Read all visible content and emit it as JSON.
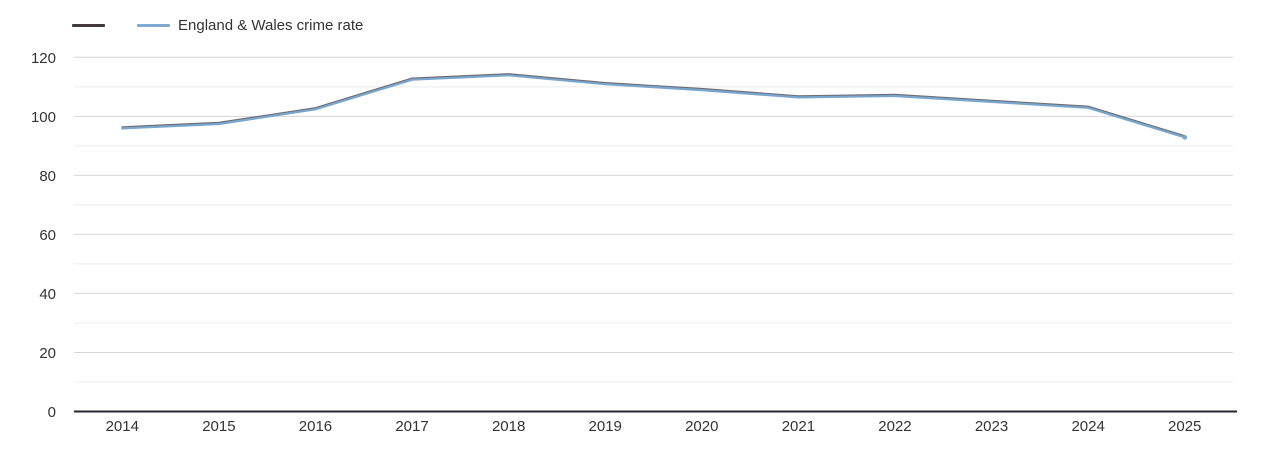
{
  "legend": {
    "items": [
      {
        "label": "",
        "color": "#42383e"
      },
      {
        "label": "England & Wales crime rate",
        "color": "#7fabd0"
      }
    ]
  },
  "chart_data": {
    "type": "line",
    "title": "",
    "xlabel": "",
    "ylabel": "",
    "x": [
      2014,
      2015,
      2016,
      2017,
      2018,
      2019,
      2020,
      2021,
      2022,
      2023,
      2024,
      2025
    ],
    "series": [
      {
        "name": "England & Wales crime rate",
        "color": "#78a6cc",
        "edge_color": "#56525a",
        "values": [
          96,
          97.5,
          102.5,
          112.5,
          114,
          111,
          109,
          106.5,
          107,
          105,
          103,
          93
        ]
      }
    ],
    "ylim": [
      0,
      120
    ],
    "yticks": [
      0,
      20,
      40,
      60,
      80,
      100,
      120
    ],
    "minor_grid_step": 10,
    "grid": true,
    "legend_position": "top-left",
    "colors": {
      "axis_line": "#26262b",
      "major_grid": "#d6d6d6",
      "minor_grid": "#ececec",
      "tick_label": "#333333"
    }
  }
}
